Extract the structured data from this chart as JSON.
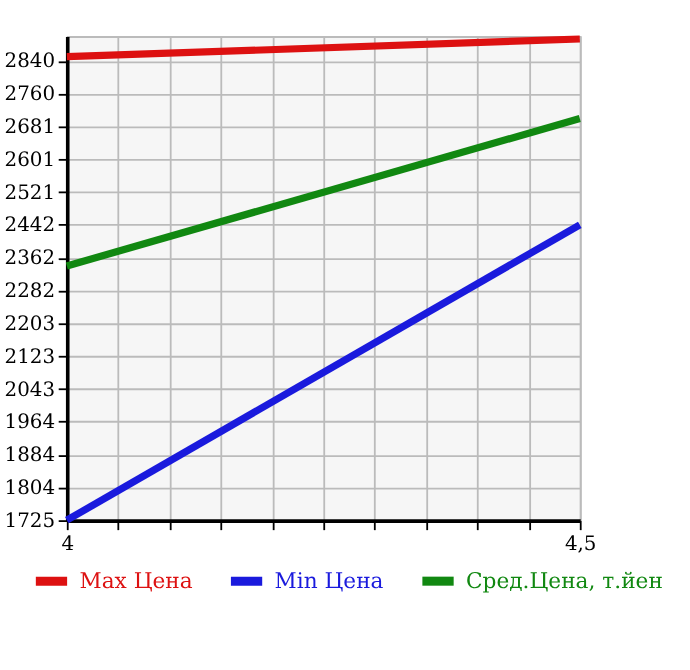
{
  "chart_data": {
    "type": "line",
    "x": [
      4,
      4.5
    ],
    "series": [
      {
        "name": "Max Цена",
        "color": "#dd1111",
        "values": [
          2850,
          2893
        ]
      },
      {
        "name": "Min Цена",
        "color": "#1a1add",
        "values": [
          1725,
          2442
        ]
      },
      {
        "name": "Сред.Цена, т.йен",
        "color": "#118811",
        "values": [
          2342,
          2700
        ]
      }
    ],
    "xlim": [
      4,
      4.5
    ],
    "xticks": [
      4,
      {
        "value": 4.05,
        "label": null
      },
      {
        "value": 4.1,
        "label": null
      },
      {
        "value": 4.15,
        "label": null
      },
      {
        "value": 4.2,
        "label": null
      },
      {
        "value": 4.25,
        "label": null
      },
      {
        "value": 4.3,
        "label": null
      },
      {
        "value": 4.35,
        "label": null
      },
      {
        "value": 4.4,
        "label": null
      },
      {
        "value": 4.45,
        "label": null
      },
      {
        "value": 4.5,
        "label": "4,5"
      }
    ],
    "ylim": [
      1725,
      2900
    ],
    "yticks": [
      1725,
      1804,
      1884,
      1964,
      2043,
      2123,
      2203,
      2282,
      2362,
      2442,
      2521,
      2601,
      2681,
      2760,
      2840
    ],
    "grid": true,
    "legend": "bottom",
    "marker": "none",
    "line_style": "solid"
  }
}
